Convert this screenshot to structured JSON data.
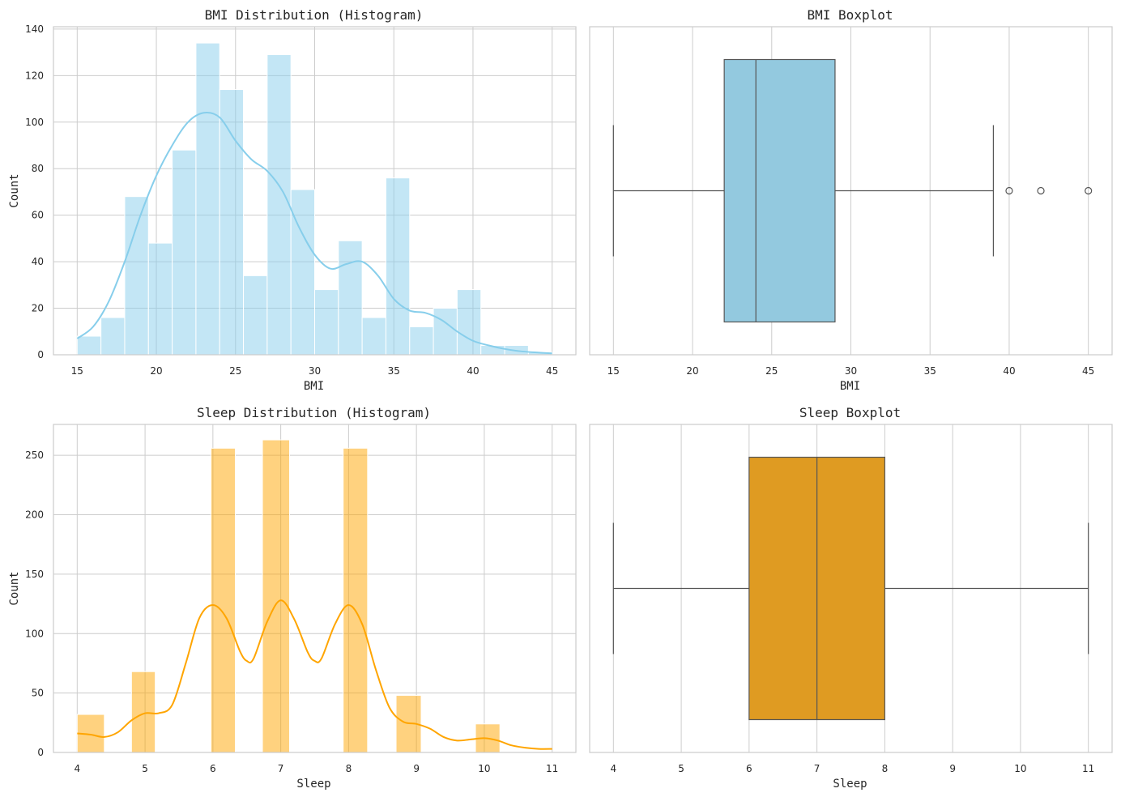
{
  "chart_data": [
    {
      "id": "bmi-hist",
      "type": "histogram",
      "title": "BMI Distribution (Histogram)",
      "xlabel": "BMI",
      "ylabel": "Count",
      "xlim": [
        13.5,
        46.5
      ],
      "ylim": [
        0,
        141
      ],
      "xticks": [
        15,
        20,
        25,
        30,
        35,
        40,
        45
      ],
      "yticks": [
        0,
        20,
        40,
        60,
        80,
        100,
        120,
        140
      ],
      "bar_color": "#87ceeb",
      "bar_opacity": 0.5,
      "kde_color": "#87ceeb",
      "bins": [
        {
          "start": 15.0,
          "end": 16.5,
          "count": 8
        },
        {
          "start": 16.5,
          "end": 18.0,
          "count": 16
        },
        {
          "start": 18.0,
          "end": 19.5,
          "count": 68
        },
        {
          "start": 19.5,
          "end": 21.0,
          "count": 48
        },
        {
          "start": 21.0,
          "end": 22.5,
          "count": 88
        },
        {
          "start": 22.5,
          "end": 24.0,
          "count": 134
        },
        {
          "start": 24.0,
          "end": 25.5,
          "count": 114
        },
        {
          "start": 25.5,
          "end": 27.0,
          "count": 34
        },
        {
          "start": 27.0,
          "end": 28.5,
          "count": 129
        },
        {
          "start": 28.5,
          "end": 30.0,
          "count": 71
        },
        {
          "start": 30.0,
          "end": 31.5,
          "count": 28
        },
        {
          "start": 31.5,
          "end": 33.0,
          "count": 49
        },
        {
          "start": 33.0,
          "end": 34.5,
          "count": 16
        },
        {
          "start": 34.5,
          "end": 36.0,
          "count": 76
        },
        {
          "start": 36.0,
          "end": 37.5,
          "count": 12
        },
        {
          "start": 37.5,
          "end": 39.0,
          "count": 20
        },
        {
          "start": 39.0,
          "end": 40.5,
          "count": 28
        },
        {
          "start": 40.5,
          "end": 42.0,
          "count": 4
        },
        {
          "start": 42.0,
          "end": 43.5,
          "count": 4
        },
        {
          "start": 43.5,
          "end": 45.0,
          "count": 1
        }
      ],
      "kde": [
        [
          15,
          7
        ],
        [
          16,
          12
        ],
        [
          17,
          23
        ],
        [
          18,
          40
        ],
        [
          19,
          60
        ],
        [
          20,
          77
        ],
        [
          21,
          90
        ],
        [
          22,
          100
        ],
        [
          23,
          104
        ],
        [
          24,
          102
        ],
        [
          25,
          92
        ],
        [
          26,
          84
        ],
        [
          27,
          79
        ],
        [
          28,
          70
        ],
        [
          29,
          55
        ],
        [
          30,
          43
        ],
        [
          31,
          37
        ],
        [
          32,
          39
        ],
        [
          33,
          40
        ],
        [
          34,
          34
        ],
        [
          35,
          24
        ],
        [
          36,
          19
        ],
        [
          37,
          18
        ],
        [
          38,
          15
        ],
        [
          39,
          10
        ],
        [
          40,
          6
        ],
        [
          41,
          4
        ],
        [
          42,
          2.5
        ],
        [
          43,
          1.5
        ],
        [
          44,
          1
        ],
        [
          45,
          0.6
        ]
      ]
    },
    {
      "id": "bmi-box",
      "type": "boxplot",
      "title": "BMI Boxplot",
      "xlabel": "BMI",
      "xlim": [
        13.5,
        46.5
      ],
      "xticks": [
        15,
        20,
        25,
        30,
        35,
        40,
        45
      ],
      "box_color": "#93c9df",
      "line_color": "#555555",
      "whisker_low": 15,
      "q1": 22,
      "median": 24,
      "q3": 29,
      "whisker_high": 39,
      "outliers": [
        40,
        42,
        45
      ]
    },
    {
      "id": "sleep-hist",
      "type": "histogram",
      "title": "Sleep Distribution (Histogram)",
      "xlabel": "Sleep",
      "ylabel": "Count",
      "xlim": [
        3.65,
        11.35
      ],
      "ylim": [
        0,
        276
      ],
      "xticks": [
        4,
        5,
        6,
        7,
        8,
        9,
        10,
        11
      ],
      "yticks": [
        0,
        50,
        100,
        150,
        200,
        250
      ],
      "bar_color": "#ffa500",
      "bar_opacity": 0.5,
      "kde_color": "#ffa500",
      "bins": [
        {
          "start": 4.0,
          "end": 4.4,
          "count": 32
        },
        {
          "start": 4.8,
          "end": 5.15,
          "count": 68
        },
        {
          "start": 5.97,
          "end": 6.33,
          "count": 256
        },
        {
          "start": 6.73,
          "end": 7.13,
          "count": 263
        },
        {
          "start": 7.92,
          "end": 8.28,
          "count": 256
        },
        {
          "start": 8.7,
          "end": 9.07,
          "count": 48
        },
        {
          "start": 9.87,
          "end": 10.23,
          "count": 24
        }
      ],
      "kde": [
        [
          4,
          16
        ],
        [
          4.2,
          15
        ],
        [
          4.4,
          13
        ],
        [
          4.6,
          17
        ],
        [
          4.8,
          27
        ],
        [
          5.0,
          33
        ],
        [
          5.2,
          33
        ],
        [
          5.4,
          40
        ],
        [
          5.6,
          75
        ],
        [
          5.8,
          113
        ],
        [
          6.0,
          124
        ],
        [
          6.2,
          113
        ],
        [
          6.4,
          85
        ],
        [
          6.5,
          77
        ],
        [
          6.6,
          79
        ],
        [
          6.8,
          110
        ],
        [
          7.0,
          128
        ],
        [
          7.2,
          112
        ],
        [
          7.4,
          84
        ],
        [
          7.5,
          77
        ],
        [
          7.6,
          79
        ],
        [
          7.8,
          108
        ],
        [
          8.0,
          124
        ],
        [
          8.2,
          108
        ],
        [
          8.4,
          70
        ],
        [
          8.6,
          38
        ],
        [
          8.8,
          26
        ],
        [
          9.0,
          24
        ],
        [
          9.2,
          20
        ],
        [
          9.4,
          13
        ],
        [
          9.6,
          10
        ],
        [
          9.8,
          11
        ],
        [
          10.0,
          12
        ],
        [
          10.2,
          10
        ],
        [
          10.4,
          6
        ],
        [
          10.6,
          4
        ],
        [
          10.8,
          3
        ],
        [
          11.0,
          3
        ]
      ]
    },
    {
      "id": "sleep-box",
      "type": "boxplot",
      "title": "Sleep Boxplot",
      "xlabel": "Sleep",
      "xlim": [
        3.65,
        11.35
      ],
      "xticks": [
        4,
        5,
        6,
        7,
        8,
        9,
        10,
        11
      ],
      "box_color": "#df9b22",
      "line_color": "#555555",
      "whisker_low": 4,
      "q1": 6,
      "median": 7,
      "q3": 8,
      "whisker_high": 11,
      "outliers": []
    }
  ]
}
